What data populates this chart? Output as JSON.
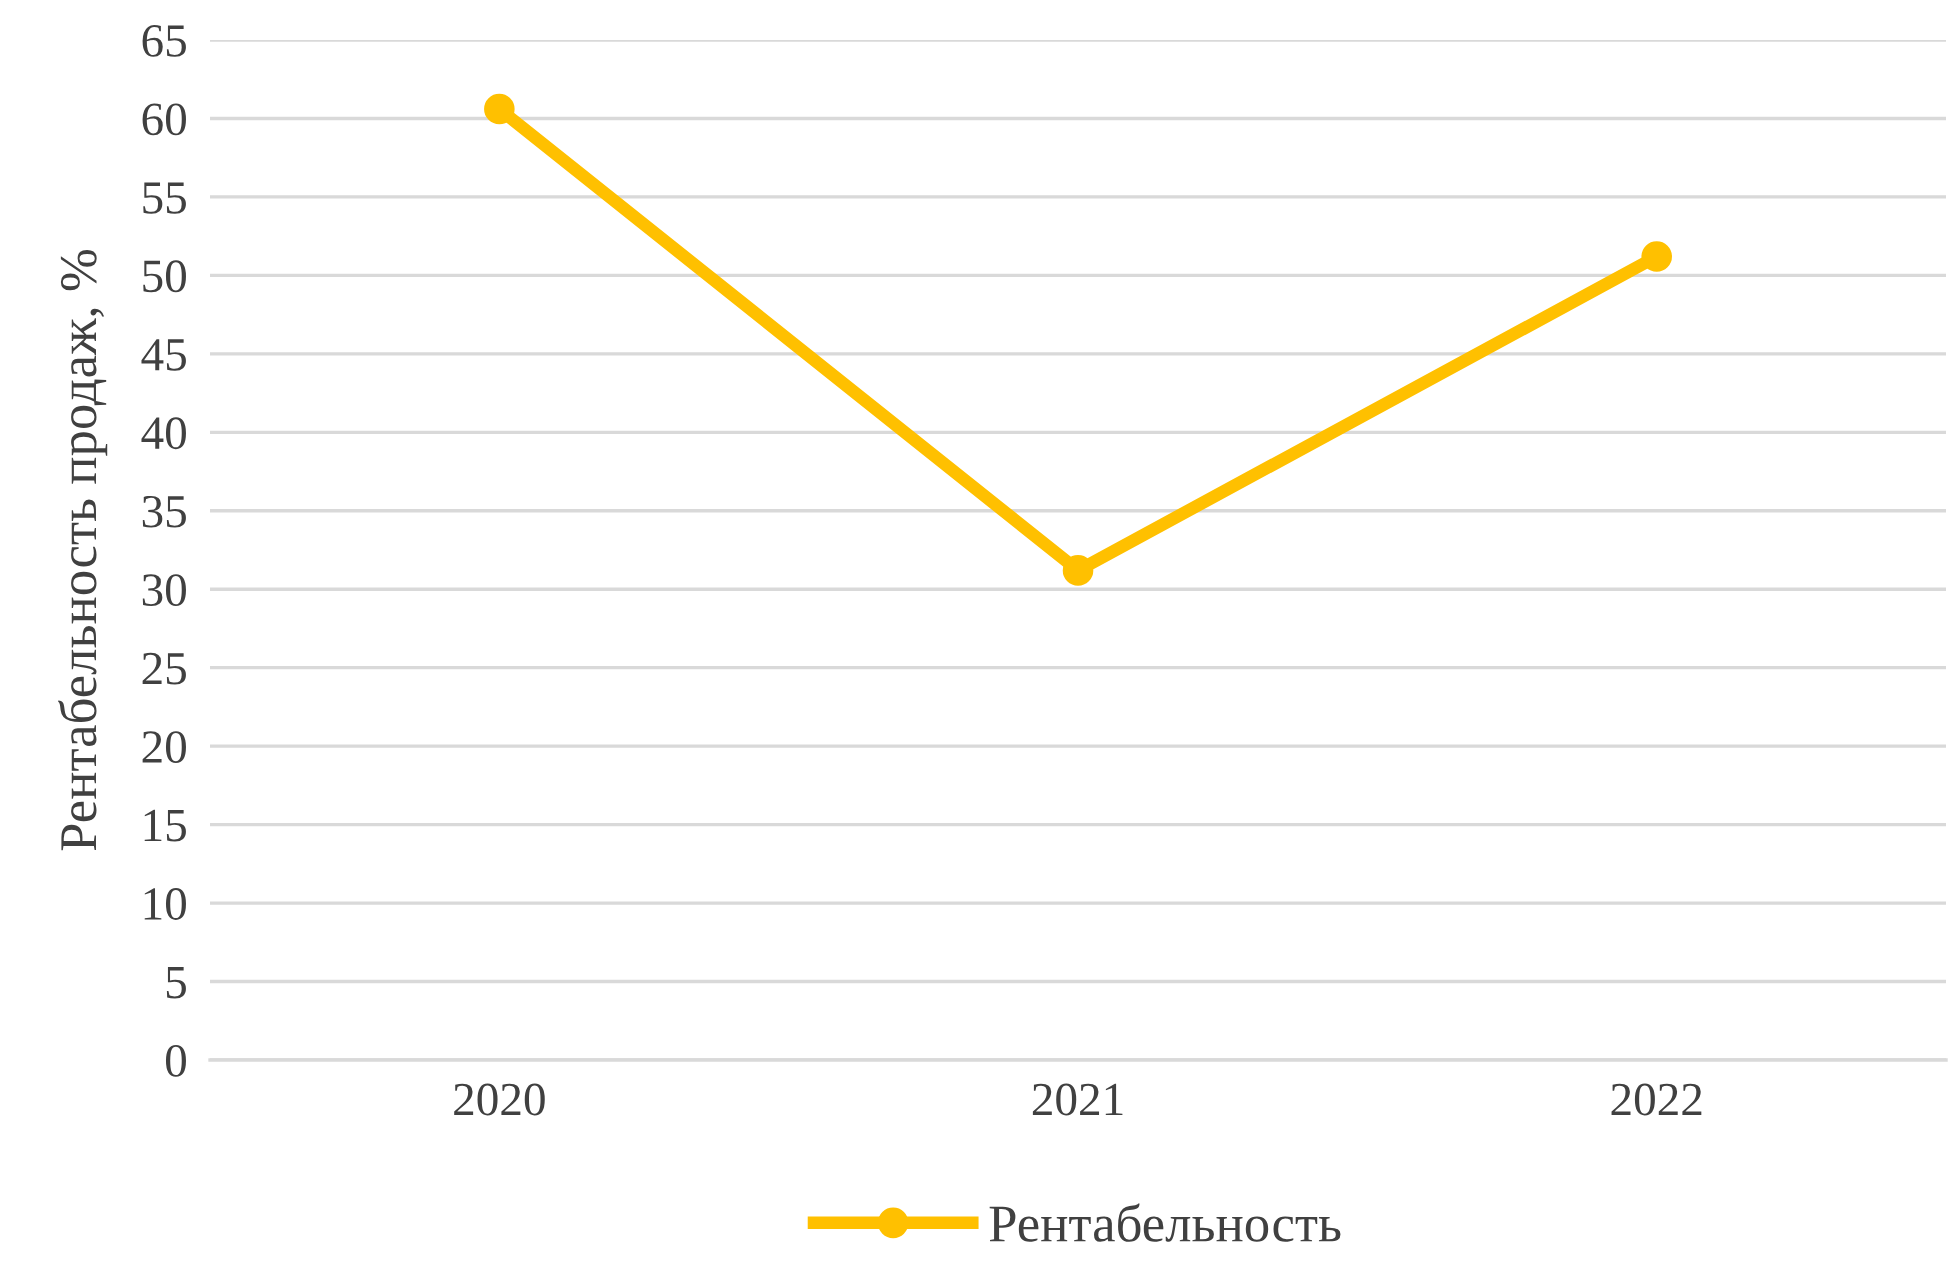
{
  "chart_data": {
    "type": "line",
    "ylabel": "Рентабельность продаж, %",
    "categories": [
      "2020",
      "2021",
      "2022"
    ],
    "series": [
      {
        "name": "Рентабельность",
        "color": "#ffc000",
        "values": [
          60.6,
          31.2,
          51.2
        ]
      }
    ],
    "ylim": [
      0,
      65
    ],
    "yticks": [
      0,
      5,
      10,
      15,
      20,
      25,
      30,
      35,
      40,
      45,
      50,
      55,
      60,
      65
    ],
    "grid": "y",
    "legend": "bottom",
    "marker": "circle",
    "line_style": "solid"
  }
}
